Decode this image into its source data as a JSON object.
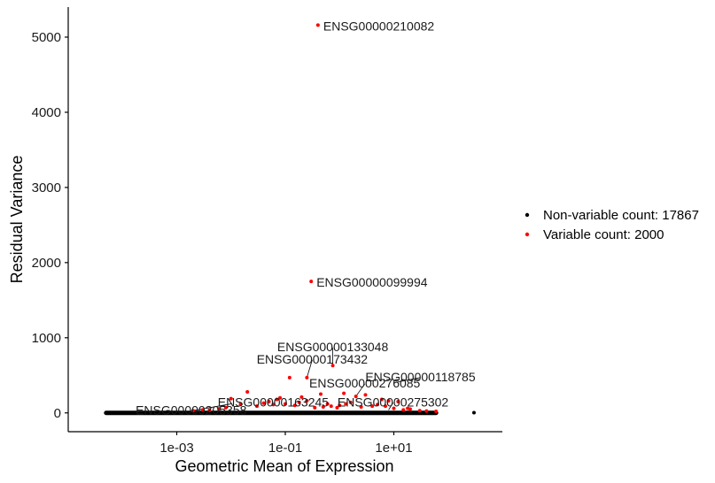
{
  "chart_data": {
    "type": "scatter",
    "xlabel": "Geometric Mean of Expression",
    "ylabel": "Residual Variance",
    "x_scale": "log10",
    "xlim": [
      1e-05,
      1000
    ],
    "ylim": [
      -250,
      5400
    ],
    "x_ticks": [
      {
        "value": 0.001,
        "label": "1e-03"
      },
      {
        "value": 0.1,
        "label": "1e-01"
      },
      {
        "value": 10,
        "label": "1e+01"
      }
    ],
    "y_ticks": [
      {
        "value": 0,
        "label": "0"
      },
      {
        "value": 1000,
        "label": "1000"
      },
      {
        "value": 2000,
        "label": "2000"
      },
      {
        "value": 3000,
        "label": "3000"
      },
      {
        "value": 4000,
        "label": "4000"
      },
      {
        "value": 5000,
        "label": "5000"
      }
    ],
    "grid": false,
    "legend": {
      "placement": "right"
    },
    "series": [
      {
        "name": "Non-variable count: 17867",
        "color": "#000000",
        "points": [
          [
            5e-05,
            0
          ],
          [
            0.0001,
            0
          ],
          [
            0.0003,
            0
          ],
          [
            0.001,
            0
          ],
          [
            0.003,
            0
          ],
          [
            0.01,
            0
          ],
          [
            0.03,
            0
          ],
          [
            0.1,
            0
          ],
          [
            0.3,
            0
          ],
          [
            1,
            0
          ],
          [
            3,
            0
          ],
          [
            10,
            0
          ],
          [
            30,
            0
          ],
          [
            300,
            3
          ]
        ]
      },
      {
        "name": "Variable count: 2000",
        "color": "#FF0000",
        "points": [
          [
            0.4,
            5160
          ],
          [
            0.3,
            1750
          ],
          [
            0.75,
            630
          ],
          [
            0.25,
            470
          ],
          [
            0.01,
            190
          ],
          [
            0.02,
            280
          ],
          [
            0.03,
            90
          ],
          [
            0.05,
            150
          ],
          [
            0.06,
            110
          ],
          [
            0.08,
            200
          ],
          [
            0.1,
            120
          ],
          [
            0.12,
            470
          ],
          [
            0.15,
            100
          ],
          [
            0.2,
            210
          ],
          [
            0.25,
            160
          ],
          [
            0.35,
            70
          ],
          [
            0.5,
            80
          ],
          [
            0.6,
            120
          ],
          [
            0.7,
            90
          ],
          [
            1,
            100
          ],
          [
            1.3,
            120
          ],
          [
            1.6,
            140
          ],
          [
            2,
            220
          ],
          [
            3,
            240
          ],
          [
            4,
            90
          ],
          [
            5,
            110
          ],
          [
            6,
            180
          ],
          [
            8,
            160
          ],
          [
            10,
            60
          ],
          [
            12,
            150
          ],
          [
            15,
            40
          ],
          [
            20,
            50
          ],
          [
            30,
            30
          ],
          [
            40,
            25
          ],
          [
            0.002,
            30
          ],
          [
            0.003,
            40
          ],
          [
            0.004,
            35
          ],
          [
            0.006,
            55
          ],
          [
            0.008,
            70
          ],
          [
            0.015,
            120
          ],
          [
            0.04,
            130
          ],
          [
            0.07,
            180
          ],
          [
            0.18,
            140
          ],
          [
            0.45,
            250
          ],
          [
            0.9,
            70
          ],
          [
            1.2,
            260
          ],
          [
            2.5,
            80
          ],
          [
            7,
            90
          ],
          [
            18,
            60
          ],
          [
            60,
            20
          ]
        ]
      }
    ],
    "annotations": [
      {
        "text": "ENSG00000210082",
        "x": 0.4,
        "y": 5160
      },
      {
        "text": "ENSG00000099994",
        "x": 0.3,
        "y": 1750
      },
      {
        "text": "ENSG00000133048",
        "x": 0.75,
        "y": 630
      },
      {
        "text": "ENSG00000118785",
        "x": 10,
        "y": 400
      },
      {
        "text": "ENSG00000173432",
        "x": 0.25,
        "y": 470
      },
      {
        "text": "ENSG00000276085",
        "x": 2,
        "y": 220
      },
      {
        "text": "ENSG00000275302",
        "x": 8,
        "y": 40
      },
      {
        "text": "ENSG00000205358",
        "x": 0.01,
        "y": 120
      },
      {
        "text": "ENSG00000163245",
        "x": 0.06,
        "y": 60
      }
    ]
  }
}
